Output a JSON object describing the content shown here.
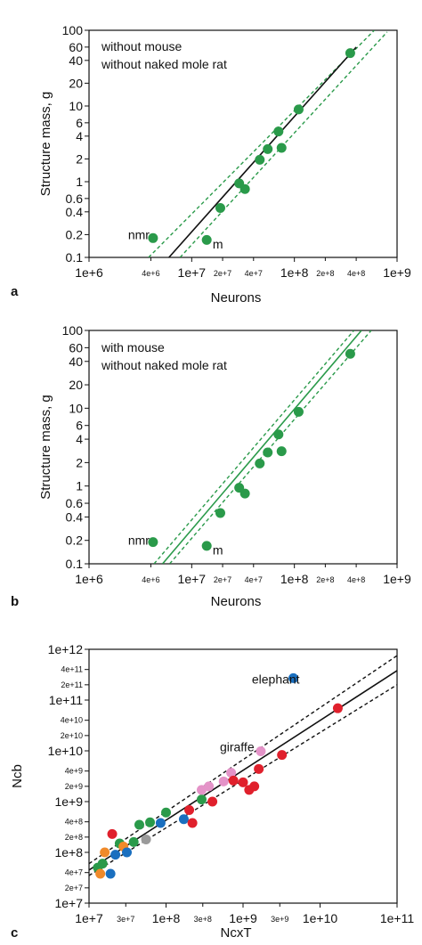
{
  "colors": {
    "green": "#2a9a4a",
    "black": "#111111",
    "blue": "#1a6fbf",
    "red": "#e0202c",
    "orange": "#f08a2a",
    "pink": "#e493c8",
    "gray": "#9a9a9a"
  },
  "chart_data": [
    {
      "panel": "a",
      "type": "scatter",
      "xlabel": "Neurons",
      "ylabel": "Structure mass, g",
      "xscale": "log",
      "yscale": "log",
      "xlim": [
        1000000,
        1000000000
      ],
      "ylim": [
        0.1,
        100
      ],
      "x_ticks_major": [
        "1e+6",
        "1e+7",
        "1e+8",
        "1e+9"
      ],
      "x_ticks_minor": [
        "4e+6",
        "2e+7",
        "4e+7",
        "2e+8",
        "4e+8"
      ],
      "y_ticks": [
        "100",
        "60",
        "40",
        "20",
        "10",
        "6",
        "4",
        "2",
        "1",
        "0.6",
        "0.4",
        "0.2",
        "0.1"
      ],
      "legend_text": [
        "without mouse",
        "without naked mole rat"
      ],
      "line_color": "#111111",
      "band_color": "#2a9a4a",
      "fit": {
        "x": [
          6000000,
          400000000
        ],
        "y": [
          0.1,
          60
        ]
      },
      "band_upper": {
        "x": [
          3800000,
          600000000
        ],
        "y": [
          0.1,
          100
        ]
      },
      "band_lower": {
        "x": [
          7700000,
          800000000
        ],
        "y": [
          0.1,
          95
        ]
      },
      "annotations": [
        {
          "text": "nmr",
          "x": 2400000,
          "y": 0.2
        },
        {
          "text": "m",
          "x": 16000000,
          "y": 0.15
        }
      ],
      "points": [
        {
          "x": 4200000,
          "y": 0.18,
          "color": "#2a9a4a"
        },
        {
          "x": 14000000,
          "y": 0.17,
          "color": "#2a9a4a"
        },
        {
          "x": 19000000,
          "y": 0.45,
          "color": "#2a9a4a"
        },
        {
          "x": 29000000,
          "y": 0.95,
          "color": "#2a9a4a"
        },
        {
          "x": 33000000,
          "y": 0.8,
          "color": "#2a9a4a"
        },
        {
          "x": 46000000,
          "y": 1.95,
          "color": "#2a9a4a"
        },
        {
          "x": 55000000,
          "y": 2.7,
          "color": "#2a9a4a"
        },
        {
          "x": 70000000,
          "y": 4.6,
          "color": "#2a9a4a"
        },
        {
          "x": 75000000,
          "y": 2.8,
          "color": "#2a9a4a"
        },
        {
          "x": 110000000,
          "y": 9,
          "color": "#2a9a4a"
        },
        {
          "x": 350000000,
          "y": 50,
          "color": "#2a9a4a"
        }
      ]
    },
    {
      "panel": "b",
      "type": "scatter",
      "xlabel": "Neurons",
      "ylabel": "Structure mass, g",
      "xscale": "log",
      "yscale": "log",
      "xlim": [
        1000000,
        1000000000
      ],
      "ylim": [
        0.1,
        100
      ],
      "x_ticks_major": [
        "1e+6",
        "1e+7",
        "1e+8",
        "1e+9"
      ],
      "x_ticks_minor": [
        "4e+6",
        "2e+7",
        "4e+7",
        "2e+8",
        "4e+8"
      ],
      "y_ticks": [
        "100",
        "60",
        "40",
        "20",
        "10",
        "6",
        "4",
        "2",
        "1",
        "0.6",
        "0.4",
        "0.2",
        "0.1"
      ],
      "legend_text": [
        "with mouse",
        "without naked mole rat"
      ],
      "line_color": "#2a9a4a",
      "band_color": "#2a9a4a",
      "fit": {
        "x": [
          5200000,
          450000000
        ],
        "y": [
          0.1,
          100
        ]
      },
      "band_upper": {
        "x": [
          4300000,
          380000000
        ],
        "y": [
          0.1,
          100
        ]
      },
      "band_lower": {
        "x": [
          6100000,
          560000000
        ],
        "y": [
          0.1,
          100
        ]
      },
      "annotations": [
        {
          "text": "nmr",
          "x": 2400000,
          "y": 0.2
        },
        {
          "text": "m",
          "x": 16000000,
          "y": 0.15
        }
      ],
      "points": [
        {
          "x": 4200000,
          "y": 0.19,
          "color": "#2a9a4a"
        },
        {
          "x": 14000000,
          "y": 0.17,
          "color": "#2a9a4a"
        },
        {
          "x": 19000000,
          "y": 0.45,
          "color": "#2a9a4a"
        },
        {
          "x": 29000000,
          "y": 0.95,
          "color": "#2a9a4a"
        },
        {
          "x": 33000000,
          "y": 0.8,
          "color": "#2a9a4a"
        },
        {
          "x": 46000000,
          "y": 1.95,
          "color": "#2a9a4a"
        },
        {
          "x": 55000000,
          "y": 2.7,
          "color": "#2a9a4a"
        },
        {
          "x": 70000000,
          "y": 4.6,
          "color": "#2a9a4a"
        },
        {
          "x": 75000000,
          "y": 2.8,
          "color": "#2a9a4a"
        },
        {
          "x": 110000000,
          "y": 9,
          "color": "#2a9a4a"
        },
        {
          "x": 350000000,
          "y": 50,
          "color": "#2a9a4a"
        }
      ]
    },
    {
      "panel": "c",
      "type": "scatter",
      "xlabel": "NcxT",
      "ylabel": "Ncb",
      "xscale": "log",
      "yscale": "log",
      "xlim": [
        10000000,
        100000000000
      ],
      "ylim": [
        10000000,
        1000000000000
      ],
      "x_ticks_major": [
        "1e+7",
        "1e+8",
        "1e+9",
        "1e+10",
        "1e+11"
      ],
      "x_ticks_minor": [
        "3e+7",
        "3e+8",
        "3e+9"
      ],
      "y_ticks": [
        "1e+12",
        "4e+11",
        "2e+11",
        "1e+11",
        "4e+10",
        "2e+10",
        "1e+10",
        "4e+9",
        "2e+9",
        "1e+9",
        "4e+8",
        "2e+8",
        "1e+8",
        "4e+7",
        "2e+7",
        "1e+7"
      ],
      "legend_text": [],
      "line_color": "#111111",
      "band_color": "#111111",
      "fit": {
        "x": [
          10000000,
          100000000000
        ],
        "y": [
          45000000,
          380000000000
        ]
      },
      "band_upper": {
        "x": [
          10000000,
          100000000000
        ],
        "y": [
          60000000,
          750000000000
        ]
      },
      "band_lower": {
        "x": [
          10000000,
          100000000000
        ],
        "y": [
          35000000,
          200000000000
        ]
      },
      "annotations": [
        {
          "text": "elephant",
          "x": 1300000000,
          "y": 260000000000
        },
        {
          "text": "giraffe",
          "x": 500000000,
          "y": 12000000000
        }
      ],
      "points": [
        {
          "x": 13000000,
          "y": 50000000,
          "color": "#2a9a4a"
        },
        {
          "x": 15000000,
          "y": 60000000,
          "color": "#2a9a4a"
        },
        {
          "x": 16000000,
          "y": 100000000,
          "color": "#f08a2a"
        },
        {
          "x": 14000000,
          "y": 38000000,
          "color": "#f08a2a"
        },
        {
          "x": 19000000,
          "y": 38000000,
          "color": "#1a6fbf"
        },
        {
          "x": 20000000,
          "y": 230000000,
          "color": "#e0202c"
        },
        {
          "x": 22000000,
          "y": 90000000,
          "color": "#1a6fbf"
        },
        {
          "x": 25000000,
          "y": 150000000,
          "color": "#2a9a4a"
        },
        {
          "x": 28000000,
          "y": 130000000,
          "color": "#f08a2a"
        },
        {
          "x": 31000000,
          "y": 100000000,
          "color": "#1a6fbf"
        },
        {
          "x": 38000000,
          "y": 160000000,
          "color": "#2a9a4a"
        },
        {
          "x": 45000000,
          "y": 350000000,
          "color": "#2a9a4a"
        },
        {
          "x": 55000000,
          "y": 180000000,
          "color": "#9a9a9a"
        },
        {
          "x": 62000000,
          "y": 390000000,
          "color": "#2a9a4a"
        },
        {
          "x": 85000000,
          "y": 380000000,
          "color": "#1a6fbf"
        },
        {
          "x": 100000000,
          "y": 610000000,
          "color": "#2a9a4a"
        },
        {
          "x": 170000000,
          "y": 450000000,
          "color": "#1a6fbf"
        },
        {
          "x": 200000000,
          "y": 680000000,
          "color": "#e0202c"
        },
        {
          "x": 220000000,
          "y": 380000000,
          "color": "#e0202c"
        },
        {
          "x": 290000000,
          "y": 1100000000,
          "color": "#2a9a4a"
        },
        {
          "x": 290000000,
          "y": 1700000000,
          "color": "#e493c8"
        },
        {
          "x": 360000000,
          "y": 2000000000,
          "color": "#e493c8"
        },
        {
          "x": 400000000,
          "y": 1000000000,
          "color": "#e0202c"
        },
        {
          "x": 560000000,
          "y": 2500000000,
          "color": "#e493c8"
        },
        {
          "x": 700000000,
          "y": 3700000000,
          "color": "#e493c8"
        },
        {
          "x": 750000000,
          "y": 2600000000,
          "color": "#e0202c"
        },
        {
          "x": 1000000000,
          "y": 2400000000,
          "color": "#e0202c"
        },
        {
          "x": 1200000000,
          "y": 1700000000,
          "color": "#e0202c"
        },
        {
          "x": 1400000000,
          "y": 2000000000,
          "color": "#e0202c"
        },
        {
          "x": 1600000000,
          "y": 4400000000,
          "color": "#e0202c"
        },
        {
          "x": 1700000000,
          "y": 9800000000,
          "color": "#e493c8"
        },
        {
          "x": 3200000000,
          "y": 8300000000,
          "color": "#e0202c"
        },
        {
          "x": 4500000000,
          "y": 270000000000,
          "color": "#1a6fbf"
        },
        {
          "x": 17000000000,
          "y": 69000000000,
          "color": "#e0202c"
        }
      ]
    }
  ]
}
